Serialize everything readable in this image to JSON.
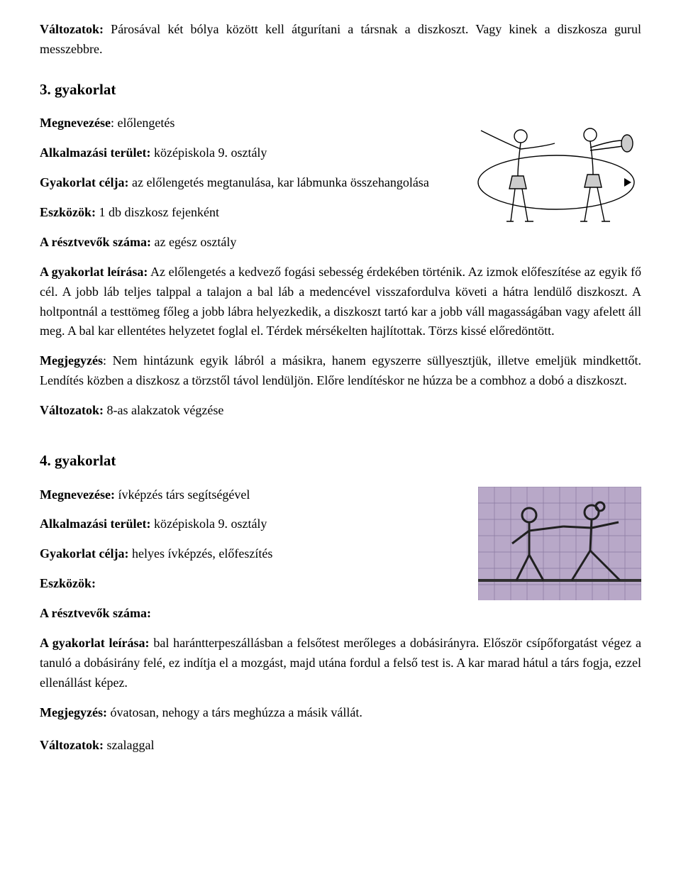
{
  "intro": {
    "variations_label": "Változatok:",
    "variations_text": " Párosával két bólya között kell átgurítani a társnak a diszkoszt. Vagy kinek a diszkosza gurul messzebbre."
  },
  "ex3": {
    "title": "3. gyakorlat",
    "name_label": "Megnevezése",
    "name_value": ": előlengetés",
    "area_label": "Alkalmazási terület:",
    "area_value": " középiskola 9. osztály",
    "goal_label": "Gyakorlat célja:",
    "goal_value": " az előlengetés megtanulása, kar lábmunka összehangolása",
    "tools_label": "Eszközök:",
    "tools_value": " 1 db diszkosz fejenként",
    "participants_label": "A résztvevők száma:",
    "participants_value": " az egész osztály",
    "desc_label": "A gyakorlat leírása:",
    "desc_value": " Az előlengetés a  kedvező fogási sebesség érdekében történik. Az izmok előfeszítése az egyik fő cél. A jobb láb teljes talppal a talajon a bal láb a medencével visszafordulva követi a hátra lendülő diszkoszt. A holtpontnál a testtömeg főleg a jobb lábra helyezkedik, a diszkoszt tartó kar a jobb váll magasságában vagy afelett áll meg. A bal kar ellentétes helyzetet foglal el. Térdek mérsékelten hajlítottak. Törzs kissé előredöntött.",
    "note_label": "Megjegyzés",
    "note_value": ": Nem hintázunk egyik lábról a másikra, hanem egyszerre süllyesztjük, illetve emeljük mindkettőt. Lendítés közben a diszkosz a törzstől távol lendüljön. Előre lendítéskor ne húzza be a combhoz a dobó a diszkoszt.",
    "variations_label": "Változatok:",
    "variations_value": " 8-as alakzatok végzése",
    "figure": {
      "bg": "#ffffff",
      "stroke": "#000000",
      "fill": "#cccccc",
      "line_width": 1.4
    }
  },
  "ex4": {
    "title": "4. gyakorlat",
    "name_label": "Megnevezése:",
    "name_value": " ívképzés társ segítségével",
    "area_label": "Alkalmazási terület:",
    "area_value": " középiskola 9. osztály",
    "goal_label": "Gyakorlat célja:",
    "goal_value": " helyes ívképzés, előfeszítés",
    "tools_label": "Eszközök:",
    "participants_label": "A résztvevők száma:",
    "desc_label": "A gyakorlat leírása:",
    "desc_value": " bal harántterpeszállásban a felsőtest merőleges a dobásirányra. Először csípőforgatást végez a tanuló a dobásirány felé, ez indítja el a mozgást, majd utána fordul a felső test is. A kar marad hátul a társ fogja, ezzel ellenállást képez.",
    "note_label": "Megjegyzés:",
    "note_value": " óvatosan, nehogy a társ meghúzza a másik vállát.",
    "variations_label": "Változatok:",
    "variations_value": " szalaggal",
    "figure": {
      "bg": "#b8a8c8",
      "grid": "#8878a0",
      "stroke": "#202020",
      "ground": "#303030",
      "line_width": 3
    }
  }
}
